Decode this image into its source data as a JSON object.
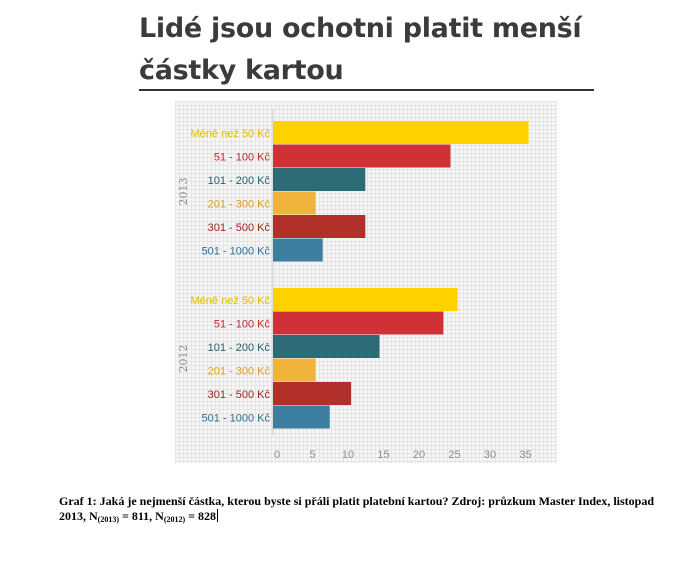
{
  "page": {
    "title": "Lidé jsou ochotni platit menší částky kartou",
    "caption": {
      "main": "Graf 1: Jaká je nejmenší částka, kterou byste si přáli platit platební kartou? Zdroj: průzkum Master Index, listopad 2013, N",
      "sub1": "(2013)",
      "mid": " = 811, N",
      "sub2": "(2012)",
      "tail": " = 828"
    }
  },
  "chart_data": {
    "type": "bar",
    "orientation": "horizontal",
    "categories": [
      "Méně než 50 Kč",
      "51 - 100 Kč",
      "101 - 200 Kč",
      "201 - 300 Kč",
      "301 - 500 Kč",
      "501 - 1000 Kč"
    ],
    "groups": [
      {
        "name": "2013",
        "values": [
          36,
          25,
          13,
          6,
          13,
          7
        ]
      },
      {
        "name": "2012",
        "values": [
          26,
          24,
          15,
          6,
          11,
          8
        ]
      }
    ],
    "category_colors": [
      "#ffd200",
      "#cf3137",
      "#2d6b76",
      "#f0b33c",
      "#b1302a",
      "#3c7fa0"
    ],
    "label_colors": [
      "#e8b900",
      "#c3282e",
      "#27606b",
      "#e29c1e",
      "#a0261f",
      "#2f6e92"
    ],
    "xticks": [
      0,
      5,
      10,
      15,
      20,
      25,
      30,
      35
    ],
    "xlim": [
      0,
      36
    ],
    "grid": true
  }
}
